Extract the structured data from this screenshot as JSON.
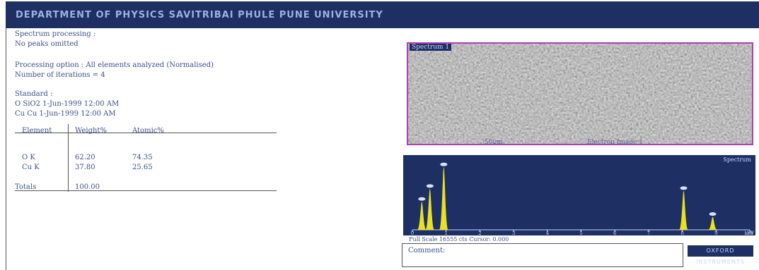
{
  "header": {
    "title": "DEPARTMENT OF PHYSICS SAVITRIBAI PHULE PUNE UNIVERSITY"
  },
  "report": {
    "lines": [
      "Spectrum processing :",
      "No peaks omitted",
      "Processing option : All elements analyzed (Normalised)",
      "Number of iterations = 4",
      "Standard :",
      "O   SiO2   1-Jun-1999 12:00 AM",
      "Cu   Cu   1-Jun-1999 12:00 AM"
    ]
  },
  "table": {
    "columns": [
      "Element",
      "Weight%",
      "Atomic%"
    ],
    "rows": [
      [
        "O K",
        "62.20",
        "74.35"
      ],
      [
        "Cu K",
        "37.80",
        "25.65"
      ]
    ],
    "totals": [
      "Totals",
      "100.00"
    ]
  },
  "image": {
    "label": "Spectrum 1",
    "scale": "50µm",
    "caption": "Electron Image 1"
  },
  "chart_data": {
    "type": "spectrum",
    "label": "Spectrum",
    "x": [
      0.28,
      0.52,
      0.93,
      8.04,
      8.9
    ],
    "values": [
      6500,
      9500,
      14500,
      9000,
      3000
    ],
    "color": "#e8e020",
    "xlim": [
      0,
      10
    ],
    "ylim": [
      0,
      16000
    ],
    "xticks": [
      0,
      1,
      2,
      3,
      4,
      5,
      6,
      7,
      8,
      9,
      10
    ],
    "xlabel": "keV",
    "footer": "Full Scale 16555 cts Cursor: 0.000"
  },
  "comment": {
    "label": "Comment:"
  },
  "logo": {
    "text": "OXFORD INSTRUMENTS"
  }
}
